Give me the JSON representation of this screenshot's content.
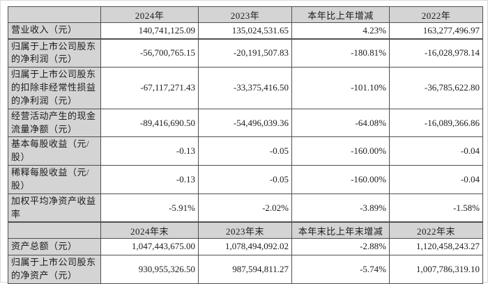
{
  "colors": {
    "header_bg": "#d4d4d4",
    "label_bg": "#d4d4d4",
    "border": "#4f4f4f",
    "page_bg": "#ffffff",
    "text": "#1c1c1c"
  },
  "rows": [
    {
      "type": "header",
      "cells": [
        "",
        "2024年",
        "2023年",
        "本年比上年增减",
        "2022年"
      ]
    },
    {
      "type": "data",
      "cells": [
        "营业收入（元）",
        "140,741,125.09",
        "135,024,531.65",
        "4.23%",
        "163,277,496.97"
      ]
    },
    {
      "type": "data",
      "cells": [
        "归属于上市公司股东的净利润（元）",
        "-56,700,765.15",
        "-20,191,507.83",
        "-180.81%",
        "-16,028,978.14"
      ]
    },
    {
      "type": "data",
      "cells": [
        "归属于上市公司股东的扣除非经常性损益的净利润（元）",
        "-67,117,271.43",
        "-33,375,416.50",
        "-101.10%",
        "-36,785,622.80"
      ]
    },
    {
      "type": "data",
      "cells": [
        "经营活动产生的现金流量净额（元）",
        "-89,416,690.50",
        "-54,496,039.36",
        "-64.08%",
        "-16,089,366.86"
      ]
    },
    {
      "type": "data",
      "cells": [
        "基本每股收益（元/股）",
        "-0.13",
        "-0.05",
        "-160.00%",
        "-0.04"
      ]
    },
    {
      "type": "data",
      "cells": [
        "稀释每股收益（元/股）",
        "-0.13",
        "-0.05",
        "-160.00%",
        "-0.04"
      ]
    },
    {
      "type": "data",
      "cells": [
        "加权平均净资产收益率",
        "-5.91%",
        "-2.02%",
        "-3.89%",
        "-1.58%"
      ]
    },
    {
      "type": "header",
      "cells": [
        "",
        "2024年末",
        "2023年末",
        "本年末比上年末增减",
        "2022年末"
      ]
    },
    {
      "type": "data",
      "cells": [
        "资产总额（元）",
        "1,047,443,675.00",
        "1,078,494,092.02",
        "-2.88%",
        "1,120,458,243.27"
      ]
    },
    {
      "type": "data",
      "cells": [
        "归属于上市公司股东的净资产（元）",
        "930,955,326.50",
        "987,594,811.27",
        "-5.74%",
        "1,007,786,319.10"
      ]
    }
  ]
}
